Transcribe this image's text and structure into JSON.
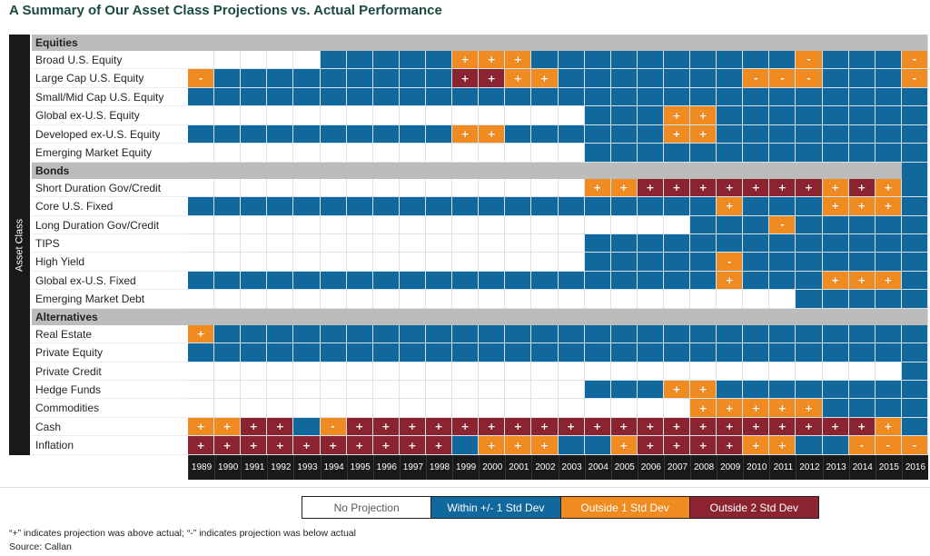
{
  "title": "A Summary of Our Asset Class Projections vs. Actual Performance",
  "y_axis_label": "Asset Class",
  "footnotes": [
    "“+” indicates projection was above actual; “-” indicates projection was below actual",
    "Source: Callan"
  ],
  "legend": [
    {
      "label": "No Projection",
      "color": "#ffffff",
      "text_color": "#58595b"
    },
    {
      "label": "Within +/- 1 Std Dev",
      "color": "#11689c",
      "text_color": "#ffffff"
    },
    {
      "label": "Outside 1 Std Dev",
      "color": "#f08b21",
      "text_color": "#ffffff"
    },
    {
      "label": "Outside 2 Std Dev",
      "color": "#8b2331",
      "text_color": "#ffffff"
    }
  ],
  "colors": {
    "within_1sd": "#11689c",
    "outside_1sd": "#f08b21",
    "outside_2sd": "#8b2331",
    "no_projection": "#ffffff",
    "section_header_bg": "#bcbcbc",
    "axis_bg": "#191919",
    "title": "#1a493f"
  },
  "chart_data": {
    "type": "heatmap",
    "x": [
      1989,
      1990,
      1991,
      1992,
      1993,
      1994,
      1995,
      1996,
      1997,
      1998,
      1999,
      2000,
      2001,
      2002,
      2003,
      2004,
      2005,
      2006,
      2007,
      2008,
      2009,
      2010,
      2011,
      2012,
      2013,
      2014,
      2015,
      2016
    ],
    "code_legend": {
      "": "No Projection",
      "b": "Within +/- 1 Std Dev",
      "o": "Outside 1 Std Dev",
      "r": "Outside 2 Std Dev"
    },
    "sign_meaning": {
      "+": "projection was above actual",
      "-": "projection was below actual"
    },
    "sections": [
      {
        "name": "Equities",
        "header_last_cell": "gray",
        "rows": [
          {
            "label": "Broad U.S. Equity",
            "cells": [
              "",
              "",
              "",
              "",
              "",
              "b",
              "b",
              "b",
              "b",
              "b",
              "o+",
              "o+",
              "o+",
              "b",
              "b",
              "b",
              "b",
              "b",
              "b",
              "b",
              "b",
              "b",
              "b",
              "o-",
              "b",
              "b",
              "b",
              "o-"
            ]
          },
          {
            "label": "Large Cap U.S. Equity",
            "cells": [
              "o-",
              "b",
              "b",
              "b",
              "b",
              "b",
              "b",
              "b",
              "b",
              "b",
              "r+",
              "r+",
              "o+",
              "o+",
              "b",
              "b",
              "b",
              "b",
              "b",
              "b",
              "b",
              "o-",
              "o-",
              "o-",
              "b",
              "b",
              "b",
              "o-"
            ]
          },
          {
            "label": "Small/Mid Cap U.S. Equity",
            "cells": [
              "b",
              "b",
              "b",
              "b",
              "b",
              "b",
              "b",
              "b",
              "b",
              "b",
              "b",
              "b",
              "b",
              "b",
              "b",
              "b",
              "b",
              "b",
              "b",
              "b",
              "b",
              "b",
              "b",
              "b",
              "b",
              "b",
              "b",
              "b"
            ]
          },
          {
            "label": "Global ex-U.S. Equity",
            "cells": [
              "",
              "",
              "",
              "",
              "",
              "",
              "",
              "",
              "",
              "",
              "",
              "",
              "",
              "",
              "",
              "b",
              "b",
              "b",
              "o+",
              "o+",
              "b",
              "b",
              "b",
              "b",
              "b",
              "b",
              "b",
              "b"
            ]
          },
          {
            "label": "Developed ex-U.S. Equity",
            "cells": [
              "b",
              "b",
              "b",
              "b",
              "b",
              "b",
              "b",
              "b",
              "b",
              "b",
              "o+",
              "o+",
              "b",
              "b",
              "b",
              "b",
              "b",
              "b",
              "o+",
              "o+",
              "b",
              "b",
              "b",
              "b",
              "b",
              "b",
              "b",
              "b"
            ]
          },
          {
            "label": "Emerging Market Equity",
            "cells": [
              "",
              "",
              "",
              "",
              "",
              "",
              "",
              "",
              "",
              "",
              "",
              "",
              "",
              "",
              "",
              "b",
              "b",
              "b",
              "b",
              "b",
              "b",
              "b",
              "b",
              "b",
              "b",
              "b",
              "b",
              "b"
            ]
          }
        ]
      },
      {
        "name": "Bonds",
        "header_last_cell": "blue",
        "rows": [
          {
            "label": "Short Duration Gov/Credit",
            "cells": [
              "",
              "",
              "",
              "",
              "",
              "",
              "",
              "",
              "",
              "",
              "",
              "",
              "",
              "",
              "",
              "o+",
              "o+",
              "r+",
              "r+",
              "r+",
              "r+",
              "r+",
              "r+",
              "r+",
              "o+",
              "r+",
              "o+",
              "b"
            ]
          },
          {
            "label": "Core U.S. Fixed",
            "cells": [
              "b",
              "b",
              "b",
              "b",
              "b",
              "b",
              "b",
              "b",
              "b",
              "b",
              "b",
              "b",
              "b",
              "b",
              "b",
              "b",
              "b",
              "b",
              "b",
              "b",
              "o+",
              "b",
              "b",
              "b",
              "o+",
              "o+",
              "o+",
              "b"
            ]
          },
          {
            "label": "Long Duration Gov/Credit",
            "cells": [
              "",
              "",
              "",
              "",
              "",
              "",
              "",
              "",
              "",
              "",
              "",
              "",
              "",
              "",
              "",
              "",
              "",
              "",
              "",
              "b",
              "b",
              "b",
              "o-",
              "b",
              "b",
              "b",
              "b",
              "b"
            ]
          },
          {
            "label": "TIPS",
            "cells": [
              "",
              "",
              "",
              "",
              "",
              "",
              "",
              "",
              "",
              "",
              "",
              "",
              "",
              "",
              "",
              "b",
              "b",
              "b",
              "b",
              "b",
              "b",
              "b",
              "b",
              "b",
              "b",
              "b",
              "b",
              "b"
            ]
          },
          {
            "label": "High Yield",
            "cells": [
              "",
              "",
              "",
              "",
              "",
              "",
              "",
              "",
              "",
              "",
              "",
              "",
              "",
              "",
              "",
              "b",
              "b",
              "b",
              "b",
              "b",
              "o-",
              "b",
              "b",
              "b",
              "b",
              "b",
              "b",
              "b"
            ]
          },
          {
            "label": "Global ex-U.S. Fixed",
            "cells": [
              "b",
              "b",
              "b",
              "b",
              "b",
              "b",
              "b",
              "b",
              "b",
              "b",
              "b",
              "b",
              "b",
              "b",
              "b",
              "b",
              "b",
              "b",
              "b",
              "b",
              "o+",
              "b",
              "b",
              "b",
              "o+",
              "o+",
              "o+",
              "b"
            ]
          },
          {
            "label": "Emerging Market Debt",
            "cells": [
              "",
              "",
              "",
              "",
              "",
              "",
              "",
              "",
              "",
              "",
              "",
              "",
              "",
              "",
              "",
              "",
              "",
              "",
              "",
              "",
              "",
              "",
              "",
              "b",
              "b",
              "b",
              "b",
              "b"
            ]
          }
        ]
      },
      {
        "name": "Alternatives",
        "header_last_cell": "gray",
        "rows": [
          {
            "label": "Real Estate",
            "cells": [
              "o+",
              "b",
              "b",
              "b",
              "b",
              "b",
              "b",
              "b",
              "b",
              "b",
              "b",
              "b",
              "b",
              "b",
              "b",
              "b",
              "b",
              "b",
              "b",
              "b",
              "b",
              "b",
              "b",
              "b",
              "b",
              "b",
              "b",
              "b"
            ]
          },
          {
            "label": "Private Equity",
            "cells": [
              "b",
              "b",
              "b",
              "b",
              "b",
              "b",
              "b",
              "b",
              "b",
              "b",
              "b",
              "b",
              "b",
              "b",
              "b",
              "b",
              "b",
              "b",
              "b",
              "b",
              "b",
              "b",
              "b",
              "b",
              "b",
              "b",
              "b",
              "b"
            ]
          },
          {
            "label": "Private Credit",
            "cells": [
              "",
              "",
              "",
              "",
              "",
              "",
              "",
              "",
              "",
              "",
              "",
              "",
              "",
              "",
              "",
              "",
              "",
              "",
              "",
              "",
              "",
              "",
              "",
              "",
              "",
              "",
              "",
              "b"
            ]
          },
          {
            "label": "Hedge Funds",
            "cells": [
              "",
              "",
              "",
              "",
              "",
              "",
              "",
              "",
              "",
              "",
              "",
              "",
              "",
              "",
              "",
              "b",
              "b",
              "b",
              "o+",
              "o+",
              "b",
              "b",
              "b",
              "b",
              "b",
              "b",
              "b",
              "b"
            ]
          },
          {
            "label": "Commodities",
            "cells": [
              "",
              "",
              "",
              "",
              "",
              "",
              "",
              "",
              "",
              "",
              "",
              "",
              "",
              "",
              "",
              "",
              "",
              "",
              "",
              "o+",
              "o+",
              "o+",
              "o+",
              "o+",
              "b",
              "b",
              "b",
              "b"
            ]
          },
          {
            "label": "Cash",
            "cells": [
              "o+",
              "o+",
              "r+",
              "r+",
              "b",
              "o-",
              "r+",
              "r+",
              "r+",
              "r+",
              "r+",
              "r+",
              "r+",
              "r+",
              "r+",
              "r+",
              "r+",
              "r+",
              "r+",
              "r+",
              "r+",
              "r+",
              "r+",
              "r+",
              "r+",
              "r+",
              "o+",
              "b"
            ]
          },
          {
            "label": "Inflation",
            "cells": [
              "r+",
              "r+",
              "r+",
              "r+",
              "r+",
              "r+",
              "r+",
              "r+",
              "r+",
              "r+",
              "b",
              "o+",
              "o+",
              "o+",
              "b",
              "b",
              "o+",
              "r+",
              "r+",
              "r+",
              "r+",
              "o+",
              "o+",
              "b",
              "b",
              "o-",
              "o-",
              "o-"
            ]
          }
        ]
      }
    ]
  }
}
